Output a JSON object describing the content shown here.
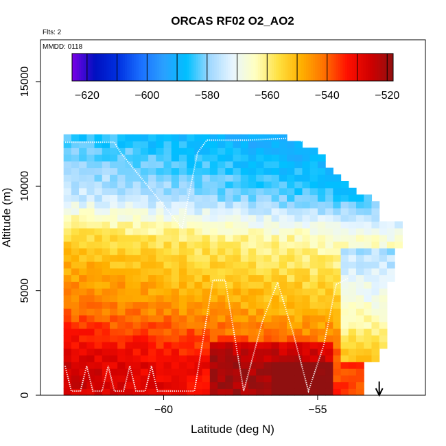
{
  "chart_data": {
    "type": "heatmap",
    "title": "ORCAS RF02 O2_AO2",
    "annotations": {
      "flights": "Flts: 2",
      "date": "MMDD: 0118"
    },
    "xlabel": "Latitude (deg N)",
    "ylabel": "Altitude (m)",
    "xlim": [
      -64.0,
      -51.5
    ],
    "ylim": [
      0,
      17000
    ],
    "x_ticks": [
      -60,
      -55
    ],
    "y_ticks": [
      0,
      5000,
      10000,
      15000
    ],
    "colorbar": {
      "range": [
        -625,
        -518
      ],
      "ticks": [
        -620,
        -600,
        -580,
        -560,
        -540,
        -520
      ],
      "colors": [
        "#7a00e6",
        "#0010c0",
        "#0030e0",
        "#1a70ff",
        "#2aa0ff",
        "#00c0ff",
        "#a0d8ff",
        "#e8f6ff",
        "#ffffc0",
        "#ffe040",
        "#ffb000",
        "#ff7000",
        "#ff1000",
        "#d00000",
        "#901010"
      ]
    },
    "grid": false,
    "legend": "colorbar at top of plot area",
    "data_extent": {
      "lat_range": [
        -63.3,
        -52.2
      ],
      "max_altitude_m": 12300,
      "value_trend": "values near -520 to -540 at low altitude (red/orange), near -560 mid altitude (yellow), near -580 to -600 above 9000 m (blue)"
    },
    "flight_track": [
      [
        -63.2,
        1400
      ],
      [
        -63.0,
        200
      ],
      [
        -62.7,
        200
      ],
      [
        -62.5,
        1400
      ],
      [
        -62.3,
        200
      ],
      [
        -62.0,
        200
      ],
      [
        -61.8,
        1400
      ],
      [
        -61.6,
        200
      ],
      [
        -61.3,
        200
      ],
      [
        -61.1,
        1400
      ],
      [
        -60.9,
        200
      ],
      [
        -60.6,
        200
      ],
      [
        -60.4,
        1400
      ],
      [
        -60.2,
        200
      ],
      [
        -59.0,
        200
      ],
      [
        -58.4,
        5500
      ],
      [
        -58.0,
        5500
      ],
      [
        -57.4,
        200
      ],
      [
        -56.8,
        3500
      ],
      [
        -56.3,
        5400
      ],
      [
        -55.8,
        3000
      ],
      [
        -55.3,
        200
      ],
      [
        -54.8,
        2400
      ],
      [
        -54.4,
        5300
      ],
      [
        -54.0,
        5600
      ]
    ],
    "upper_track": [
      [
        -63.2,
        12100
      ],
      [
        -61.6,
        12100
      ],
      [
        -61.4,
        11600
      ],
      [
        -59.4,
        8000
      ],
      [
        -58.9,
        11600
      ],
      [
        -58.6,
        12200
      ],
      [
        -57.3,
        12200
      ],
      [
        -55.8,
        12300
      ],
      [
        -55.2,
        12000
      ]
    ],
    "marker": {
      "lat": -53.0,
      "symbol": "arrow-down"
    }
  }
}
